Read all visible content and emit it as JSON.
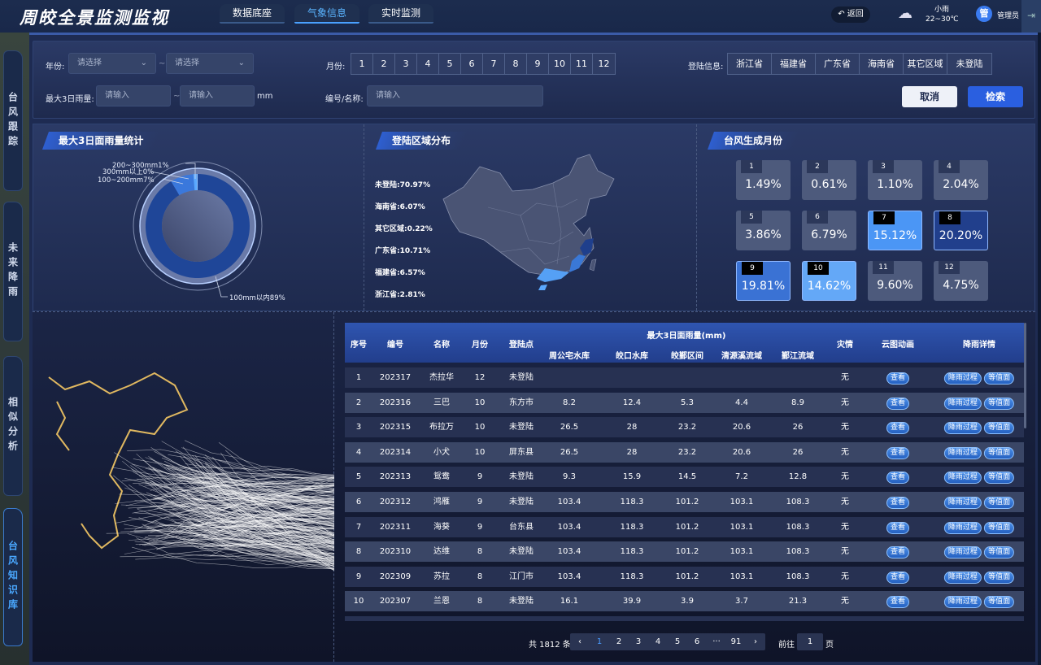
{
  "header": {
    "title": "周皎全景监测监视",
    "tabs": [
      {
        "label": "数据底座"
      },
      {
        "label": "气象信息",
        "active": true
      },
      {
        "label": "实时监测"
      }
    ],
    "back": "返回",
    "weather": {
      "icon": "rain-cloud-icon",
      "desc": "小雨",
      "temp": "22~30℃"
    },
    "user": {
      "avatar": "管",
      "name": "管理员"
    }
  },
  "sidebar": {
    "items": [
      {
        "label": "台风跟踪"
      },
      {
        "label": "未来降雨"
      },
      {
        "label": "相似分析"
      },
      {
        "label": "台风知识库",
        "active": true
      }
    ]
  },
  "filters": {
    "year_label": "年份:",
    "year_from": "请选择",
    "year_to": "请选择",
    "tilde": "~",
    "month_label": "月份:",
    "months": [
      "1",
      "2",
      "3",
      "4",
      "5",
      "6",
      "7",
      "8",
      "9",
      "10",
      "11",
      "12"
    ],
    "landing_label": "登陆信息:",
    "landing_options": [
      "浙江省",
      "福建省",
      "广东省",
      "海南省",
      "其它区域",
      "未登陆"
    ],
    "rain_label": "最大3日雨量:",
    "rain_from_placeholder": "请输入",
    "rain_to_placeholder": "请输入",
    "rain_unit": "mm",
    "id_label": "编号/名称:",
    "id_placeholder": "请输入",
    "cancel": "取消",
    "search": "检索"
  },
  "rain_stats": {
    "title": "最大3日面雨量统计",
    "chart_data": {
      "type": "pie",
      "slices": [
        {
          "label": "100mm以内89%",
          "value": 89,
          "color": "#1f4698"
        },
        {
          "label": "100~200mm7%",
          "value": 7,
          "color": "#3a78dc"
        },
        {
          "label": "200~300mm1%",
          "value": 1,
          "color": "#5aa8ff"
        },
        {
          "label": "300mm以上0%",
          "value": 0.3,
          "color": "#8fc4ff"
        }
      ]
    }
  },
  "landing_dist": {
    "title": "登陆区域分布",
    "items": [
      "未登陆:70.97%",
      "海南省:6.07%",
      "其它区域:0.22%",
      "广东省:10.71%",
      "福建省:6.57%",
      "浙江省:2.81%"
    ]
  },
  "month_stats": {
    "title": "台风生成月份",
    "items": [
      {
        "m": "1",
        "p": "1.49%"
      },
      {
        "m": "2",
        "p": "0.61%"
      },
      {
        "m": "3",
        "p": "1.10%"
      },
      {
        "m": "4",
        "p": "2.04%"
      },
      {
        "m": "5",
        "p": "3.86%"
      },
      {
        "m": "6",
        "p": "6.79%"
      },
      {
        "m": "7",
        "p": "15.12%",
        "color": "#4b96f5"
      },
      {
        "m": "8",
        "p": "20.20%",
        "color": "#213f8c"
      },
      {
        "m": "9",
        "p": "19.81%",
        "color": "#3a72d4"
      },
      {
        "m": "10",
        "p": "14.62%",
        "color": "#64a8f7"
      },
      {
        "m": "11",
        "p": "9.60%"
      },
      {
        "m": "12",
        "p": "4.75%"
      }
    ]
  },
  "table": {
    "headers": {
      "seq": "序号",
      "id": "编号",
      "name": "名称",
      "month": "月份",
      "landing": "登陆点",
      "rain_group": "最大3日面雨量(mm)",
      "rain_cols": [
        "周公宅水库",
        "皎口水库",
        "皎鄞区间",
        "清源溪流域",
        "鄞江流域"
      ],
      "disaster": "灾情",
      "cloud": "云图动画",
      "detail": "降雨详情"
    },
    "view_label": "查看",
    "process_label": "降雨过程",
    "contour_label": "等值面",
    "rows": [
      [
        "1",
        "202317",
        "杰拉华",
        "12",
        "未登陆",
        "",
        "",
        "",
        "",
        "",
        "无"
      ],
      [
        "2",
        "202316",
        "三巴",
        "10",
        "东方市",
        "8.2",
        "12.4",
        "5.3",
        "4.4",
        "8.9",
        "无"
      ],
      [
        "3",
        "202315",
        "布拉万",
        "10",
        "未登陆",
        "26.5",
        "28",
        "23.2",
        "20.6",
        "26",
        "无"
      ],
      [
        "4",
        "202314",
        "小犬",
        "10",
        "屏东县",
        "26.5",
        "28",
        "23.2",
        "20.6",
        "26",
        "无"
      ],
      [
        "5",
        "202313",
        "鸳鸯",
        "9",
        "未登陆",
        "9.3",
        "15.9",
        "14.5",
        "7.2",
        "12.8",
        "无"
      ],
      [
        "6",
        "202312",
        "鸿雁",
        "9",
        "未登陆",
        "103.4",
        "118.3",
        "101.2",
        "103.1",
        "108.3",
        "无"
      ],
      [
        "7",
        "202311",
        "海葵",
        "9",
        "台东县",
        "103.4",
        "118.3",
        "101.2",
        "103.1",
        "108.3",
        "无"
      ],
      [
        "8",
        "202310",
        "达维",
        "8",
        "未登陆",
        "103.4",
        "118.3",
        "101.2",
        "103.1",
        "108.3",
        "无"
      ],
      [
        "9",
        "202309",
        "苏拉",
        "8",
        "江门市",
        "103.4",
        "118.3",
        "101.2",
        "103.1",
        "108.3",
        "无"
      ],
      [
        "10",
        "202307",
        "兰恩",
        "8",
        "未登陆",
        "16.1",
        "39.9",
        "3.9",
        "3.7",
        "21.3",
        "无"
      ]
    ]
  },
  "pagination": {
    "total": "共 1812 条",
    "pages": [
      "1",
      "2",
      "3",
      "4",
      "5",
      "6",
      "···",
      "91"
    ],
    "current": "1",
    "goto_label": "前往",
    "goto_value": "1",
    "page_unit": "页"
  }
}
